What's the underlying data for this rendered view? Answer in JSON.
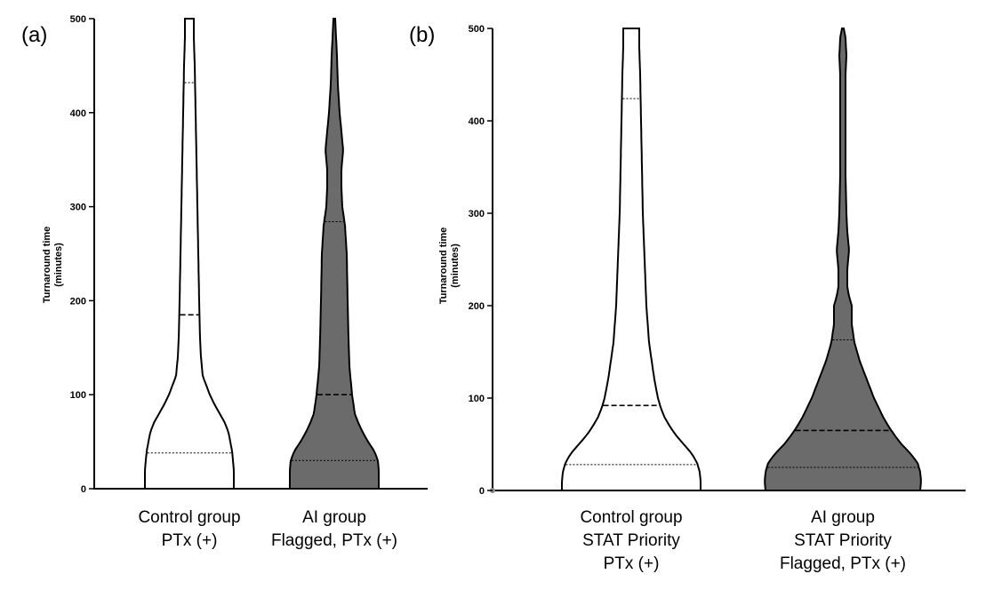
{
  "chart_data": [
    {
      "type": "violin",
      "panel_label": "(a)",
      "ylabel_line1": "Turnaround time",
      "ylabel_line2": "(minutes)",
      "ylim": [
        0,
        500
      ],
      "yticks": [
        0,
        100,
        200,
        300,
        400,
        500
      ],
      "groups": [
        {
          "name": "Control group",
          "label_lines": [
            "Control group",
            "PTx (+)"
          ],
          "fill": "#ffffff",
          "max_halfwidth_minutes": 50,
          "quartiles": {
            "q1": 38,
            "median": 185,
            "q3": 432
          },
          "density_profile": [
            [
              0,
              50
            ],
            [
              10,
              50
            ],
            [
              20,
              50
            ],
            [
              30,
              49
            ],
            [
              40,
              48
            ],
            [
              50,
              46
            ],
            [
              60,
              44
            ],
            [
              70,
              40
            ],
            [
              80,
              34
            ],
            [
              90,
              28
            ],
            [
              100,
              23
            ],
            [
              110,
              19
            ],
            [
              120,
              15
            ],
            [
              140,
              13
            ],
            [
              160,
              12
            ],
            [
              200,
              11
            ],
            [
              250,
              10
            ],
            [
              300,
              9
            ],
            [
              350,
              8
            ],
            [
              400,
              7
            ],
            [
              450,
              6
            ],
            [
              480,
              5
            ],
            [
              500,
              5
            ]
          ]
        },
        {
          "name": "AI group",
          "label_lines": [
            "AI group",
            "Flagged, PTx (+)"
          ],
          "fill": "#6b6b6b",
          "max_halfwidth_minutes": 50,
          "quartiles": {
            "q1": 30,
            "median": 100,
            "q3": 284
          },
          "density_profile": [
            [
              0,
              50
            ],
            [
              10,
              50
            ],
            [
              20,
              50
            ],
            [
              30,
              49
            ],
            [
              40,
              45
            ],
            [
              50,
              38
            ],
            [
              60,
              32
            ],
            [
              70,
              27
            ],
            [
              80,
              23
            ],
            [
              100,
              20
            ],
            [
              130,
              17
            ],
            [
              160,
              16
            ],
            [
              200,
              15
            ],
            [
              250,
              14
            ],
            [
              280,
              12
            ],
            [
              300,
              9
            ],
            [
              320,
              8
            ],
            [
              340,
              8
            ],
            [
              360,
              10
            ],
            [
              380,
              8
            ],
            [
              400,
              6
            ],
            [
              430,
              4
            ],
            [
              460,
              3
            ],
            [
              480,
              2
            ],
            [
              500,
              1
            ]
          ]
        }
      ]
    },
    {
      "type": "violin",
      "panel_label": "(b)",
      "ylabel_line1": "Turnaround time",
      "ylabel_line2": "(minutes)",
      "ylim": [
        0,
        500
      ],
      "yticks": [
        0,
        100,
        200,
        300,
        400,
        500
      ],
      "groups": [
        {
          "name": "Control group",
          "label_lines": [
            "Control group",
            "STAT Priority",
            "PTx (+)"
          ],
          "fill": "#ffffff",
          "max_halfwidth_minutes": 78,
          "quartiles": {
            "q1": 28,
            "median": 92,
            "q3": 424
          },
          "density_profile": [
            [
              0,
              78
            ],
            [
              10,
              78
            ],
            [
              20,
              77
            ],
            [
              30,
              74
            ],
            [
              40,
              68
            ],
            [
              50,
              59
            ],
            [
              60,
              50
            ],
            [
              70,
              43
            ],
            [
              80,
              37
            ],
            [
              90,
              33
            ],
            [
              100,
              30
            ],
            [
              120,
              26
            ],
            [
              140,
              23
            ],
            [
              160,
              20
            ],
            [
              200,
              17
            ],
            [
              250,
              15
            ],
            [
              300,
              13
            ],
            [
              350,
              12
            ],
            [
              400,
              11
            ],
            [
              450,
              10
            ],
            [
              480,
              9
            ],
            [
              500,
              9
            ]
          ]
        },
        {
          "name": "AI group",
          "label_lines": [
            "AI group",
            "STAT Priority",
            "Flagged, PTx (+)"
          ],
          "fill": "#6b6b6b",
          "max_halfwidth_minutes": 88,
          "quartiles": {
            "q1": 25,
            "median": 65,
            "q3": 163
          },
          "density_profile": [
            [
              0,
              87
            ],
            [
              10,
              88
            ],
            [
              20,
              87
            ],
            [
              30,
              84
            ],
            [
              40,
              76
            ],
            [
              50,
              66
            ],
            [
              60,
              58
            ],
            [
              70,
              51
            ],
            [
              80,
              45
            ],
            [
              100,
              35
            ],
            [
              120,
              27
            ],
            [
              140,
              19
            ],
            [
              160,
              13
            ],
            [
              180,
              10
            ],
            [
              200,
              10
            ],
            [
              210,
              7
            ],
            [
              220,
              5
            ],
            [
              240,
              5
            ],
            [
              260,
              7
            ],
            [
              280,
              5
            ],
            [
              300,
              4
            ],
            [
              340,
              3
            ],
            [
              380,
              3
            ],
            [
              420,
              3
            ],
            [
              450,
              3
            ],
            [
              470,
              4
            ],
            [
              490,
              3
            ],
            [
              500,
              1
            ]
          ]
        }
      ]
    }
  ]
}
